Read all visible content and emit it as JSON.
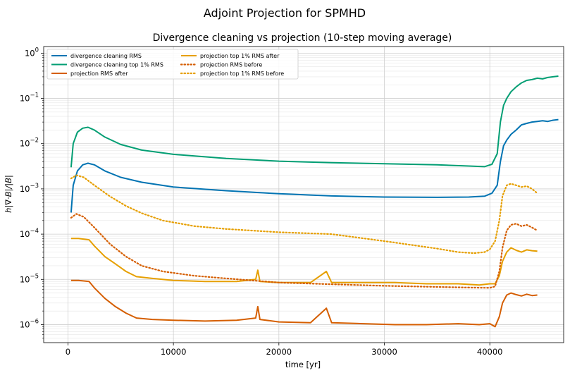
{
  "suptitle": "Adjoint Projection for SPMHD",
  "chart_data": {
    "type": "line",
    "title": "Divergence cleaning vs projection (10-step moving average)",
    "xlabel": "time [yr]",
    "ylabel": "h|∇·B|/|B|",
    "yscale": "log",
    "xlim": [
      -2300,
      47000
    ],
    "ylim": [
      4e-07,
      1.4
    ],
    "xticks": [
      0,
      10000,
      20000,
      30000,
      40000
    ],
    "xtick_labels": [
      "0",
      "10000",
      "20000",
      "30000",
      "40000"
    ],
    "yticks": [
      1e-06,
      1e-05,
      0.0001,
      0.001,
      0.01,
      0.1,
      1
    ],
    "ytick_labels": [
      "10^-6",
      "10^-5",
      "10^-4",
      "10^-3",
      "10^-2",
      "10^-1",
      "10^0"
    ],
    "grid": true,
    "legend_position": "top-left",
    "series": [
      {
        "name": "divergence cleaning RMS",
        "color": "#0173b2",
        "style": "solid",
        "x": [
          300,
          500,
          900,
          1400,
          1900,
          2500,
          3500,
          5000,
          7000,
          10000,
          15000,
          20000,
          25000,
          30000,
          35000,
          38000,
          39500,
          40200,
          40700,
          41000,
          41300,
          41600,
          42000,
          42500,
          43000,
          43500,
          44000,
          44500,
          45000,
          45500,
          46000,
          46500
        ],
        "y": [
          0.0003,
          0.0012,
          0.0025,
          0.0034,
          0.0037,
          0.0034,
          0.0025,
          0.0018,
          0.0014,
          0.0011,
          0.00091,
          0.00078,
          0.0007,
          0.00066,
          0.00065,
          0.00066,
          0.00069,
          0.0008,
          0.0012,
          0.004,
          0.009,
          0.012,
          0.016,
          0.02,
          0.026,
          0.028,
          0.03,
          0.031,
          0.032,
          0.031,
          0.033,
          0.034
        ]
      },
      {
        "name": "divergence cleaning top 1% RMS",
        "color": "#029e73",
        "style": "solid",
        "x": [
          300,
          500,
          900,
          1400,
          1900,
          2500,
          3500,
          5000,
          7000,
          10000,
          15000,
          20000,
          25000,
          30000,
          35000,
          38000,
          39500,
          40200,
          40700,
          41000,
          41300,
          41600,
          42000,
          42500,
          43000,
          43500,
          44000,
          44500,
          45000,
          45500,
          46000,
          46500
        ],
        "y": [
          0.003,
          0.01,
          0.018,
          0.022,
          0.023,
          0.02,
          0.014,
          0.0096,
          0.0072,
          0.0058,
          0.0047,
          0.0041,
          0.0038,
          0.0036,
          0.0034,
          0.0032,
          0.0031,
          0.0035,
          0.006,
          0.03,
          0.07,
          0.1,
          0.14,
          0.18,
          0.22,
          0.25,
          0.26,
          0.28,
          0.27,
          0.29,
          0.3,
          0.31
        ]
      },
      {
        "name": "projection RMS after",
        "color": "#d55e00",
        "style": "solid",
        "x": [
          300,
          1000,
          2000,
          2500,
          3500,
          4500,
          5500,
          6500,
          8000,
          10000,
          13000,
          16000,
          17800,
          18000,
          18200,
          20000,
          23000,
          24500,
          25000,
          28000,
          31000,
          34000,
          37000,
          39000,
          40000,
          40500,
          40900,
          41200,
          41600,
          42000,
          42500,
          43000,
          43500,
          44000,
          44500
        ],
        "y": [
          9.5e-06,
          9.5e-06,
          9e-06,
          6.5e-06,
          3.8e-06,
          2.5e-06,
          1.8e-06,
          1.4e-06,
          1.3e-06,
          1.25e-06,
          1.2e-06,
          1.25e-06,
          1.4e-06,
          2.5e-06,
          1.3e-06,
          1.15e-06,
          1.1e-06,
          2.3e-06,
          1.1e-06,
          1.05e-06,
          1e-06,
          1e-06,
          1.05e-06,
          1e-06,
          1.05e-06,
          9e-07,
          1.5e-06,
          3e-06,
          4.5e-06,
          5e-06,
          4.6e-06,
          4.3e-06,
          4.7e-06,
          4.4e-06,
          4.5e-06
        ]
      },
      {
        "name": "projection top 1% RMS after",
        "color": "#e69f00",
        "style": "solid",
        "x": [
          300,
          1000,
          2000,
          2500,
          3500,
          4500,
          5500,
          6500,
          8000,
          10000,
          13000,
          16000,
          17800,
          18000,
          18200,
          20000,
          23000,
          24500,
          25000,
          28000,
          31000,
          34000,
          37000,
          39000,
          40000,
          40500,
          40900,
          41200,
          41600,
          42000,
          42500,
          43000,
          43500,
          44000,
          44500
        ],
        "y": [
          8e-05,
          8e-05,
          7.5e-05,
          5.5e-05,
          3.2e-05,
          2.2e-05,
          1.5e-05,
          1.15e-05,
          1.05e-05,
          9.5e-06,
          9e-06,
          9e-06,
          1e-05,
          1.6e-05,
          9e-06,
          8.5e-06,
          8.5e-06,
          1.5e-05,
          8.5e-06,
          8.5e-06,
          8.5e-06,
          8e-06,
          8e-06,
          7.5e-06,
          8e-06,
          8e-06,
          1.2e-05,
          2.5e-05,
          4e-05,
          5e-05,
          4.4e-05,
          4e-05,
          4.5e-05,
          4.3e-05,
          4.2e-05
        ]
      },
      {
        "name": "projection RMS before",
        "color": "#d55e00",
        "style": "dotted",
        "x": [
          300,
          800,
          1500,
          2500,
          4000,
          5500,
          7000,
          9000,
          12000,
          15000,
          20000,
          25000,
          30000,
          35000,
          38000,
          40000,
          40500,
          40900,
          41200,
          41600,
          42000,
          42500,
          43000,
          43500,
          44000,
          44500
        ],
        "y": [
          0.00023,
          0.00028,
          0.00024,
          0.00014,
          6e-05,
          3.2e-05,
          2e-05,
          1.5e-05,
          1.2e-05,
          1.05e-05,
          8.5e-06,
          7.8e-06,
          7.2e-06,
          6.8e-06,
          6.6e-06,
          6.5e-06,
          7e-06,
          1.5e-05,
          5e-05,
          0.00012,
          0.00016,
          0.00017,
          0.00015,
          0.00016,
          0.00014,
          0.00012
        ]
      },
      {
        "name": "projection top 1% RMS before",
        "color": "#e69f00",
        "style": "dotted",
        "x": [
          300,
          800,
          1500,
          2500,
          4000,
          5500,
          7000,
          9000,
          12000,
          15000,
          20000,
          25000,
          30000,
          35000,
          37000,
          38500,
          39500,
          40000,
          40500,
          40900,
          41200,
          41600,
          42000,
          42500,
          43000,
          43500,
          44000,
          44500
        ],
        "y": [
          0.0017,
          0.002,
          0.0018,
          0.0012,
          0.00068,
          0.00042,
          0.00029,
          0.0002,
          0.00015,
          0.00013,
          0.00011,
          0.0001,
          7e-05,
          4.8e-05,
          4e-05,
          3.8e-05,
          4e-05,
          4.6e-05,
          7e-05,
          0.0002,
          0.0007,
          0.0012,
          0.0013,
          0.0012,
          0.0011,
          0.00115,
          0.001,
          0.0008
        ]
      }
    ]
  }
}
